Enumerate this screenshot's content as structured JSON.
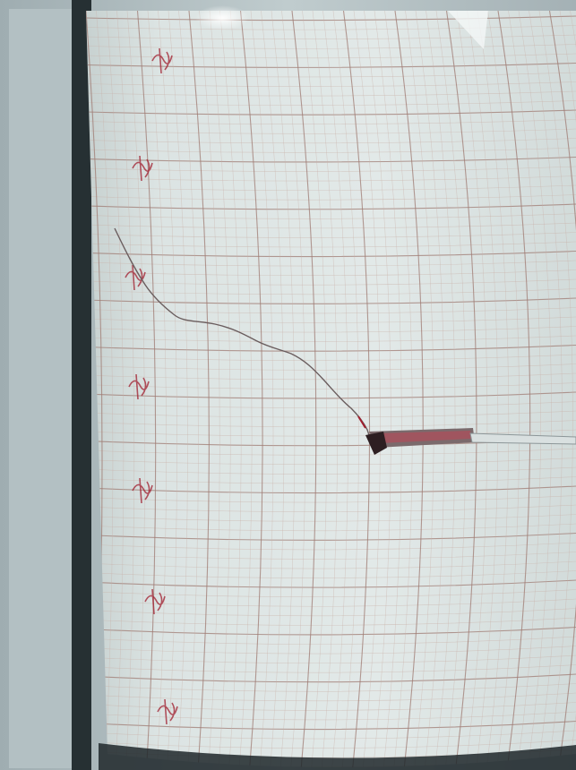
{
  "photo": {
    "description_free": true,
    "colors": {
      "paper": "#dbe3e2",
      "grid_minor": "#c9b0a8",
      "grid_major": "#9f7b73",
      "pen_trace": "#6a5a5c",
      "pen_tip": "#2e1f22",
      "ink_red": "#a01e2e",
      "drum_shadow": "#1f282b",
      "wall": "#b4c1c4"
    },
    "icons": [
      "recording-pen-icon"
    ]
  }
}
